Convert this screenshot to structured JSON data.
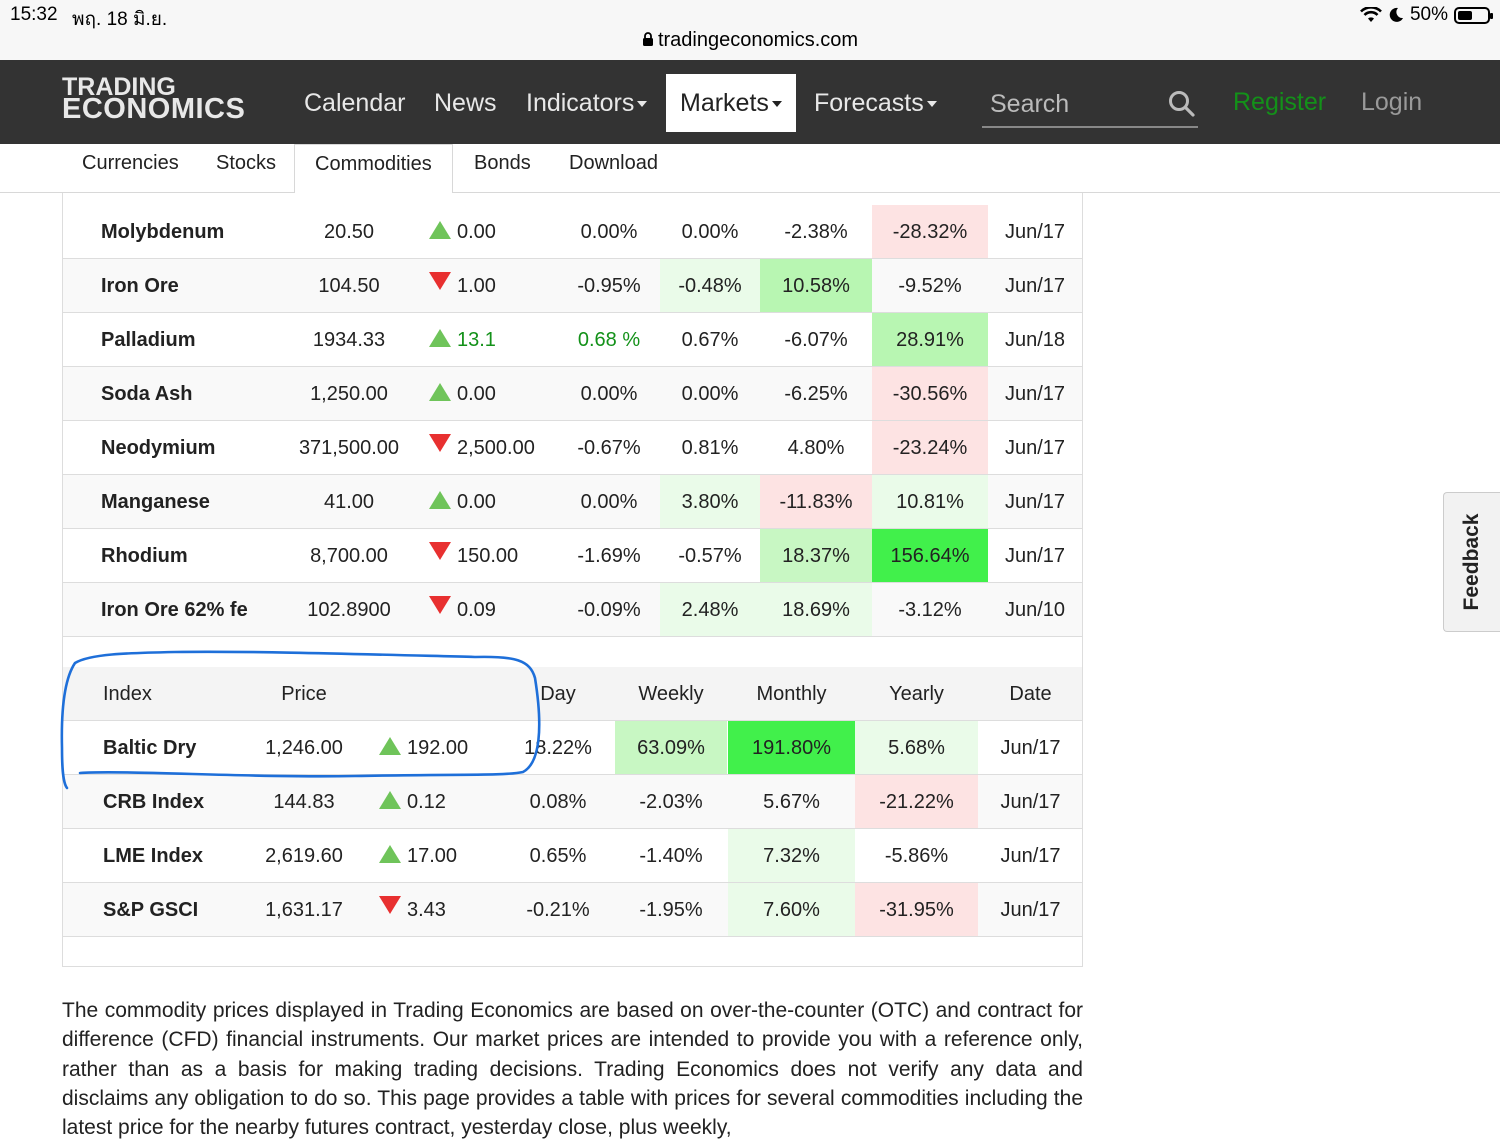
{
  "status_bar": {
    "time": "15:32",
    "date": "พฤ. 18 มิ.ย.",
    "battery": "50%",
    "url": "tradingeconomics.com"
  },
  "nav": {
    "logo_line1": "TRADING",
    "logo_line2": "ECONOMICS",
    "items": [
      "Calendar",
      "News",
      "Indicators",
      "Markets",
      "Forecasts"
    ],
    "active": "Markets",
    "search_placeholder": "Search",
    "register": "Register",
    "login": "Login",
    "register_color": "#139119"
  },
  "subnav": {
    "items": [
      "Currencies",
      "Stocks",
      "Commodities",
      "Bonds",
      "Download"
    ],
    "active": "Commodities"
  },
  "commodities": [
    {
      "name": "Molybdenum",
      "price": "20.50",
      "dir": "up",
      "change": "0.00",
      "pct": "0.00%",
      "weekly": "0.00%",
      "monthly": "-2.38%",
      "yearly": "-28.32%",
      "date": "Jun/17"
    },
    {
      "name": "Iron Ore",
      "price": "104.50",
      "dir": "down",
      "change": "1.00",
      "pct": "-0.95%",
      "weekly": "-0.48%",
      "monthly": "10.58%",
      "yearly": "-9.52%",
      "date": "Jun/17"
    },
    {
      "name": "Palladium",
      "price": "1934.33",
      "dir": "up",
      "change": "13.1",
      "pct": "0.68 %",
      "weekly": "0.67%",
      "monthly": "-6.07%",
      "yearly": "28.91%",
      "date": "Jun/18"
    },
    {
      "name": "Soda Ash",
      "price": "1,250.00",
      "dir": "up",
      "change": "0.00",
      "pct": "0.00%",
      "weekly": "0.00%",
      "monthly": "-6.25%",
      "yearly": "-30.56%",
      "date": "Jun/17"
    },
    {
      "name": "Neodymium",
      "price": "371,500.00",
      "dir": "down",
      "change": "2,500.00",
      "pct": "-0.67%",
      "weekly": "0.81%",
      "monthly": "4.80%",
      "yearly": "-23.24%",
      "date": "Jun/17"
    },
    {
      "name": "Manganese",
      "price": "41.00",
      "dir": "up",
      "change": "0.00",
      "pct": "0.00%",
      "weekly": "3.80%",
      "monthly": "-11.83%",
      "yearly": "10.81%",
      "date": "Jun/17"
    },
    {
      "name": "Rhodium",
      "price": "8,700.00",
      "dir": "down",
      "change": "150.00",
      "pct": "-1.69%",
      "weekly": "-0.57%",
      "monthly": "18.37%",
      "yearly": "156.64%",
      "date": "Jun/17"
    },
    {
      "name": "Iron Ore 62% fe",
      "price": "102.8900",
      "dir": "down",
      "change": "0.09",
      "pct": "-0.09%",
      "weekly": "2.48%",
      "monthly": "18.69%",
      "yearly": "-3.12%",
      "date": "Jun/10"
    }
  ],
  "index_table": {
    "headers": {
      "index": "Index",
      "price": "Price",
      "day": "Day",
      "weekly": "Weekly",
      "monthly": "Monthly",
      "yearly": "Yearly",
      "date": "Date"
    },
    "rows": [
      {
        "name": "Baltic Dry",
        "price": "1,246.00",
        "dir": "up",
        "change": "192.00",
        "pct": "18.22%",
        "weekly": "63.09%",
        "monthly": "191.80%",
        "yearly": "5.68%",
        "date": "Jun/17"
      },
      {
        "name": "CRB Index",
        "price": "144.83",
        "dir": "up",
        "change": "0.12",
        "pct": "0.08%",
        "weekly": "-2.03%",
        "monthly": "5.67%",
        "yearly": "-21.22%",
        "date": "Jun/17"
      },
      {
        "name": "LME Index",
        "price": "2,619.60",
        "dir": "up",
        "change": "17.00",
        "pct": "0.65%",
        "weekly": "-1.40%",
        "monthly": "7.32%",
        "yearly": "-5.86%",
        "date": "Jun/17"
      },
      {
        "name": "S&P GSCI",
        "price": "1,631.17",
        "dir": "down",
        "change": "3.43",
        "pct": "-0.21%",
        "weekly": "-1.95%",
        "monthly": "7.60%",
        "yearly": "-31.95%",
        "date": "Jun/17"
      }
    ]
  },
  "description": "The commodity prices displayed in Trading Economics are based on over-the-counter (OTC) and contract for difference (CFD) financial instruments. Our market prices are intended to provide you with a reference only, rather than as a basis for making trading decisions. Trading Economics does not verify any data and disclaims any obligation to do so. This page provides a table with prices for several commodities including the latest price for the nearby futures contract, yesterday close, plus weekly,",
  "feedback": "Feedback",
  "colors": {
    "navbar": "#333333",
    "up_arrow": "#6fc45a",
    "down_arrow": "#e83030",
    "annotation": "#1e6fd9"
  },
  "icons": [
    "lock-icon",
    "search-icon",
    "wifi-icon",
    "moon-icon",
    "battery-icon",
    "caret-down-icon",
    "arrow-up-icon",
    "arrow-down-icon"
  ]
}
